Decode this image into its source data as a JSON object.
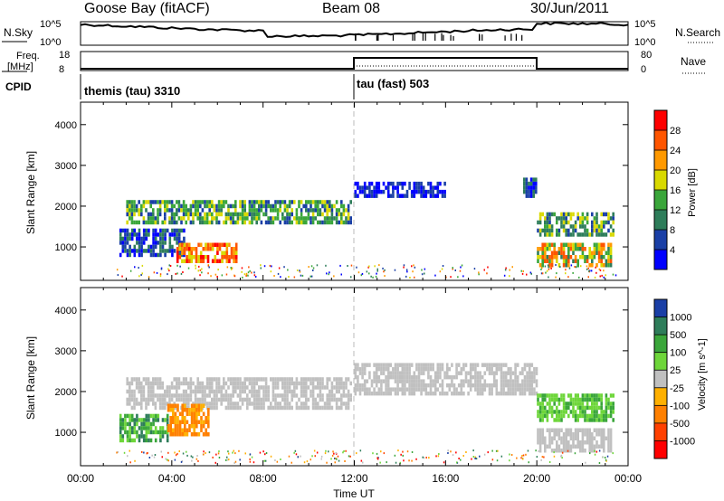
{
  "header": {
    "station": "Goose Bay (fitACF)",
    "beam": "Beam 08",
    "date": "30/Jun/2011"
  },
  "noise_panel": {
    "left_label": "N.Sky",
    "right_label": "N.Search",
    "left_ticks": [
      "10^5",
      "10^0"
    ],
    "right_ticks": [
      "10^5",
      "10^0"
    ]
  },
  "freq_panel": {
    "left_label_1": "Freq.",
    "left_label_2": "[MHz]",
    "right_label": "Nave",
    "left_ticks": [
      "18",
      "8"
    ],
    "right_ticks": [
      "80",
      "0"
    ]
  },
  "cpid": {
    "label": "CPID",
    "segments": [
      {
        "name": "themis (tau) 3310",
        "start_hour": 0,
        "end_hour": 12
      },
      {
        "name": "tau (fast) 503",
        "start_hour": 12,
        "end_hour": 20
      }
    ]
  },
  "colors": {
    "power_scale": [
      "#0000ff",
      "#1a3fa6",
      "#2e7d5a",
      "#3aa63a",
      "#d9d900",
      "#ff9900",
      "#ff5500",
      "#ff0000"
    ],
    "velocity_scale": [
      "#1a3fa6",
      "#2e7d5a",
      "#3aa63a",
      "#6ed63a",
      "#c0c0c0",
      "#ffb000",
      "#ff8000",
      "#ff4000",
      "#ff0000"
    ],
    "noise_line": "#000000"
  },
  "chart_data": [
    {
      "type": "heatmap",
      "panel": "power",
      "ylabel": "Slant Range [km]",
      "ylim": [
        180,
        4550
      ],
      "yticks": [
        "1000",
        "2000",
        "3000",
        "4000"
      ],
      "x_unit": "hours UT",
      "xlim": [
        0,
        24
      ],
      "colorbar_label": "Power [dB]",
      "colorbar_ticks": [
        "4",
        "8",
        "12",
        "16",
        "20",
        "24",
        "28"
      ],
      "features": [
        {
          "t_start": 2.0,
          "t_end": 11.8,
          "range_start": 1650,
          "range_end": 2150,
          "level": "12-16"
        },
        {
          "t_start": 1.7,
          "t_end": 4.5,
          "range_start": 850,
          "range_end": 1450,
          "level": "4-12"
        },
        {
          "t_start": 4.2,
          "t_end": 6.8,
          "range_start": 700,
          "range_end": 1100,
          "level": "20-28"
        },
        {
          "t_start": 12.0,
          "t_end": 16.0,
          "range_start": 2250,
          "range_end": 2600,
          "level": "4-8"
        },
        {
          "t_start": 19.4,
          "t_end": 20.0,
          "range_start": 2300,
          "range_end": 2700,
          "level": "4-12"
        },
        {
          "t_start": 20.0,
          "t_end": 23.4,
          "range_start": 1350,
          "range_end": 1850,
          "level": "8-16"
        },
        {
          "t_start": 20.0,
          "t_end": 23.3,
          "range_start": 600,
          "range_end": 1100,
          "level": "12-24"
        }
      ]
    },
    {
      "type": "heatmap",
      "panel": "velocity",
      "ylabel": "Slant Range [km]",
      "ylim": [
        180,
        4550
      ],
      "yticks": [
        "1000",
        "2000",
        "3000",
        "4000"
      ],
      "xlabel": "Time UT",
      "xlim": [
        0,
        24
      ],
      "xticks": [
        "00:00",
        "04:00",
        "08:00",
        "12:00",
        "16:00",
        "20:00",
        "00:00"
      ],
      "colorbar_label": "Velocity [m s^-1]",
      "colorbar_ticks": [
        "1000",
        "500",
        "100",
        "25",
        "-25",
        "-100",
        "-500",
        "-1000"
      ],
      "features": [
        {
          "t_start": 2.0,
          "t_end": 11.8,
          "range_start": 1650,
          "range_end": 2350,
          "level": "-25..25"
        },
        {
          "t_start": 1.7,
          "t_end": 3.8,
          "range_start": 800,
          "range_end": 1450,
          "level": "25..500"
        },
        {
          "t_start": 3.8,
          "t_end": 5.6,
          "range_start": 1000,
          "range_end": 1700,
          "level": "-100..-500"
        },
        {
          "t_start": 12.0,
          "t_end": 20.0,
          "range_start": 2000,
          "range_end": 2700,
          "level": "-25..25"
        },
        {
          "t_start": 20.0,
          "t_end": 23.4,
          "range_start": 1350,
          "range_end": 1950,
          "level": "25..100"
        },
        {
          "t_start": 20.0,
          "t_end": 23.3,
          "range_start": 600,
          "range_end": 1100,
          "level": "-25..25"
        }
      ]
    }
  ]
}
